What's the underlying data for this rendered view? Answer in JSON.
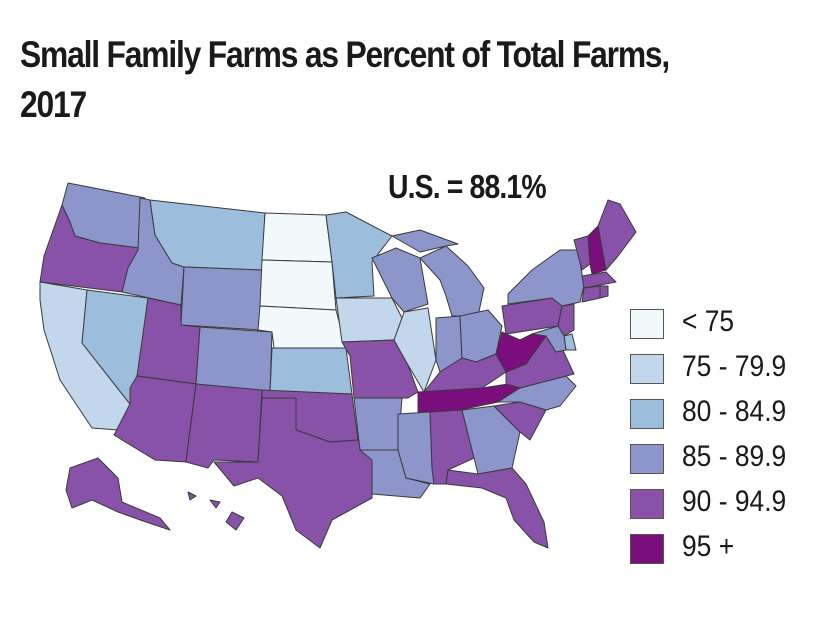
{
  "title": "Small Family Farms as Percent of Total Farms,\n2017",
  "us_total": "U.S. = 88.1%",
  "legend": [
    {
      "label": "< 75",
      "color": "#f1f9fb"
    },
    {
      "label": "75 - 79.9",
      "color": "#c3d7ec"
    },
    {
      "label": "80 - 84.9",
      "color": "#9dbddd"
    },
    {
      "label": "85 - 89.9",
      "color": "#8d96cb"
    },
    {
      "label": "90 - 94.9",
      "color": "#8852a8"
    },
    {
      "label": "95 +",
      "color": "#7c0d7d"
    }
  ],
  "states": [
    {
      "id": "WA",
      "cls": 3
    },
    {
      "id": "OR",
      "cls": 4
    },
    {
      "id": "CA",
      "cls": 1
    },
    {
      "id": "NV",
      "cls": 2
    },
    {
      "id": "ID",
      "cls": 3
    },
    {
      "id": "MT",
      "cls": 2
    },
    {
      "id": "WY",
      "cls": 3
    },
    {
      "id": "UT",
      "cls": 4
    },
    {
      "id": "AZ",
      "cls": 4
    },
    {
      "id": "CO",
      "cls": 3
    },
    {
      "id": "NM",
      "cls": 4
    },
    {
      "id": "ND",
      "cls": 0
    },
    {
      "id": "SD",
      "cls": 0
    },
    {
      "id": "NE",
      "cls": 0
    },
    {
      "id": "KS",
      "cls": 2
    },
    {
      "id": "OK",
      "cls": 4
    },
    {
      "id": "TX",
      "cls": 4
    },
    {
      "id": "MN",
      "cls": 2
    },
    {
      "id": "IA",
      "cls": 1
    },
    {
      "id": "MO",
      "cls": 4
    },
    {
      "id": "AR",
      "cls": 3
    },
    {
      "id": "LA",
      "cls": 3
    },
    {
      "id": "WI",
      "cls": 3
    },
    {
      "id": "IL",
      "cls": 1
    },
    {
      "id": "MI",
      "cls": 3
    },
    {
      "id": "IN",
      "cls": 3
    },
    {
      "id": "OH",
      "cls": 3
    },
    {
      "id": "KY",
      "cls": 4
    },
    {
      "id": "TN",
      "cls": 5
    },
    {
      "id": "MS",
      "cls": 3
    },
    {
      "id": "AL",
      "cls": 4
    },
    {
      "id": "GA",
      "cls": 3
    },
    {
      "id": "FL",
      "cls": 4
    },
    {
      "id": "SC",
      "cls": 4
    },
    {
      "id": "NC",
      "cls": 3
    },
    {
      "id": "VA",
      "cls": 4
    },
    {
      "id": "WV",
      "cls": 5
    },
    {
      "id": "PA",
      "cls": 4
    },
    {
      "id": "NY",
      "cls": 3
    },
    {
      "id": "VT",
      "cls": 4
    },
    {
      "id": "NH",
      "cls": 5
    },
    {
      "id": "ME",
      "cls": 4
    },
    {
      "id": "MA",
      "cls": 4
    },
    {
      "id": "CT",
      "cls": 4
    },
    {
      "id": "RI",
      "cls": 4
    },
    {
      "id": "NJ",
      "cls": 4
    },
    {
      "id": "DE",
      "cls": 2
    },
    {
      "id": "MD",
      "cls": 3
    },
    {
      "id": "AK",
      "cls": 4
    },
    {
      "id": "HI",
      "cls": 4
    }
  ]
}
